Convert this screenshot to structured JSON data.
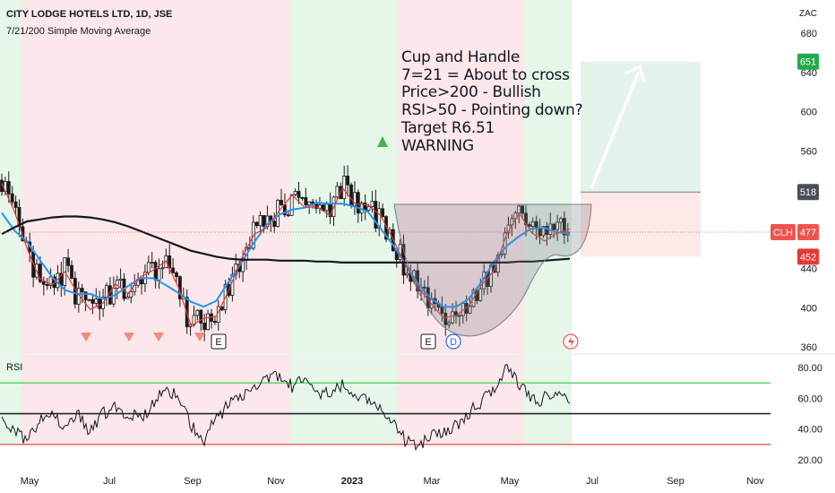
{
  "header": {
    "title": "CITY LODGE HOTELS LTD, 1D, JSE",
    "indicator": "7/21/200 Simple Moving Average",
    "rsi_label": "RSI",
    "currency": "ZAC"
  },
  "annotation": {
    "lines": [
      "Cup and Handle",
      "7=21 = About to cross",
      "Price>200 - Bullish",
      "RSI>50 - Pointing down?",
      "Target R6.51",
      "WARNING"
    ]
  },
  "price_tags": {
    "target": "651",
    "stop_entry": "518",
    "symbol": "CLH",
    "last": "477",
    "stop": "452"
  },
  "colors": {
    "bull_bg": "#e6f6e8",
    "bear_bg": "#fce8ea",
    "ma7": "#e53935",
    "ma21": "#2196f3",
    "ma200": "#131722",
    "rsi_upper": "#2ecc40",
    "rsi_lower": "#e53935",
    "target_tag": "#22ab4a",
    "stop_tag": "#e53935"
  },
  "event_markers": [
    {
      "label": "E",
      "date_index": 0
    },
    {
      "label": "E",
      "date_index": 1
    },
    {
      "label": "D",
      "date_index": 2
    }
  ],
  "chart_data": [
    {
      "type": "line",
      "title": "CITY LODGE HOTELS LTD, 1D, JSE",
      "x_axis": {
        "ticks": [
          "May",
          "Jul",
          "Sep",
          "Nov",
          "2023",
          "Mar",
          "May",
          "Jul",
          "Sep",
          "Nov"
        ]
      },
      "y_axis": {
        "unit": "ZAC",
        "ticks": [
          360,
          400,
          440,
          480,
          520,
          560,
          600,
          640,
          680
        ],
        "range": [
          355,
          695
        ]
      },
      "series": [
        {
          "name": "Price",
          "values": [
            530,
            500,
            460,
            425,
            420,
            440,
            410,
            395,
            405,
            420,
            415,
            430,
            440,
            445,
            420,
            380,
            390,
            395,
            420,
            450,
            480,
            485,
            500,
            510,
            500,
            505,
            495,
            525,
            505,
            500,
            490,
            470,
            440,
            420,
            400,
            390,
            395,
            400,
            420,
            440,
            475,
            500,
            480,
            470,
            480,
            477
          ]
        },
        {
          "name": "SMA 200",
          "values": [
            475,
            482,
            488,
            490,
            492,
            493,
            493,
            492,
            490,
            487,
            483,
            478,
            473,
            468,
            463,
            458,
            455,
            452,
            450,
            449,
            449,
            449,
            448,
            448,
            448,
            447,
            447,
            446,
            446,
            446,
            446,
            446,
            446,
            446,
            446,
            446,
            446,
            446,
            446,
            446,
            446,
            447,
            447,
            448,
            449,
            450
          ]
        }
      ],
      "levels": [
        {
          "label": "651",
          "value": 651
        },
        {
          "label": "518",
          "value": 518
        },
        {
          "label": "477",
          "value": 477
        },
        {
          "label": "452",
          "value": 452
        }
      ]
    },
    {
      "type": "line",
      "title": "RSI",
      "y_axis": {
        "ticks": [
          20.0,
          40.0,
          60.0,
          80.0
        ],
        "tick_labels": [
          "20.00",
          "40.00",
          "60.00",
          "80.00"
        ],
        "range": [
          15,
          85
        ]
      },
      "bands": [
        30,
        50,
        70
      ],
      "series": [
        {
          "name": "RSI",
          "values": [
            48,
            40,
            32,
            45,
            50,
            42,
            52,
            38,
            50,
            55,
            50,
            48,
            55,
            68,
            60,
            42,
            32,
            48,
            55,
            62,
            68,
            72,
            75,
            68,
            72,
            65,
            62,
            70,
            60,
            58,
            52,
            45,
            32,
            28,
            35,
            38,
            42,
            50,
            58,
            65,
            80,
            70,
            58,
            60,
            62,
            57
          ]
        }
      ]
    }
  ]
}
